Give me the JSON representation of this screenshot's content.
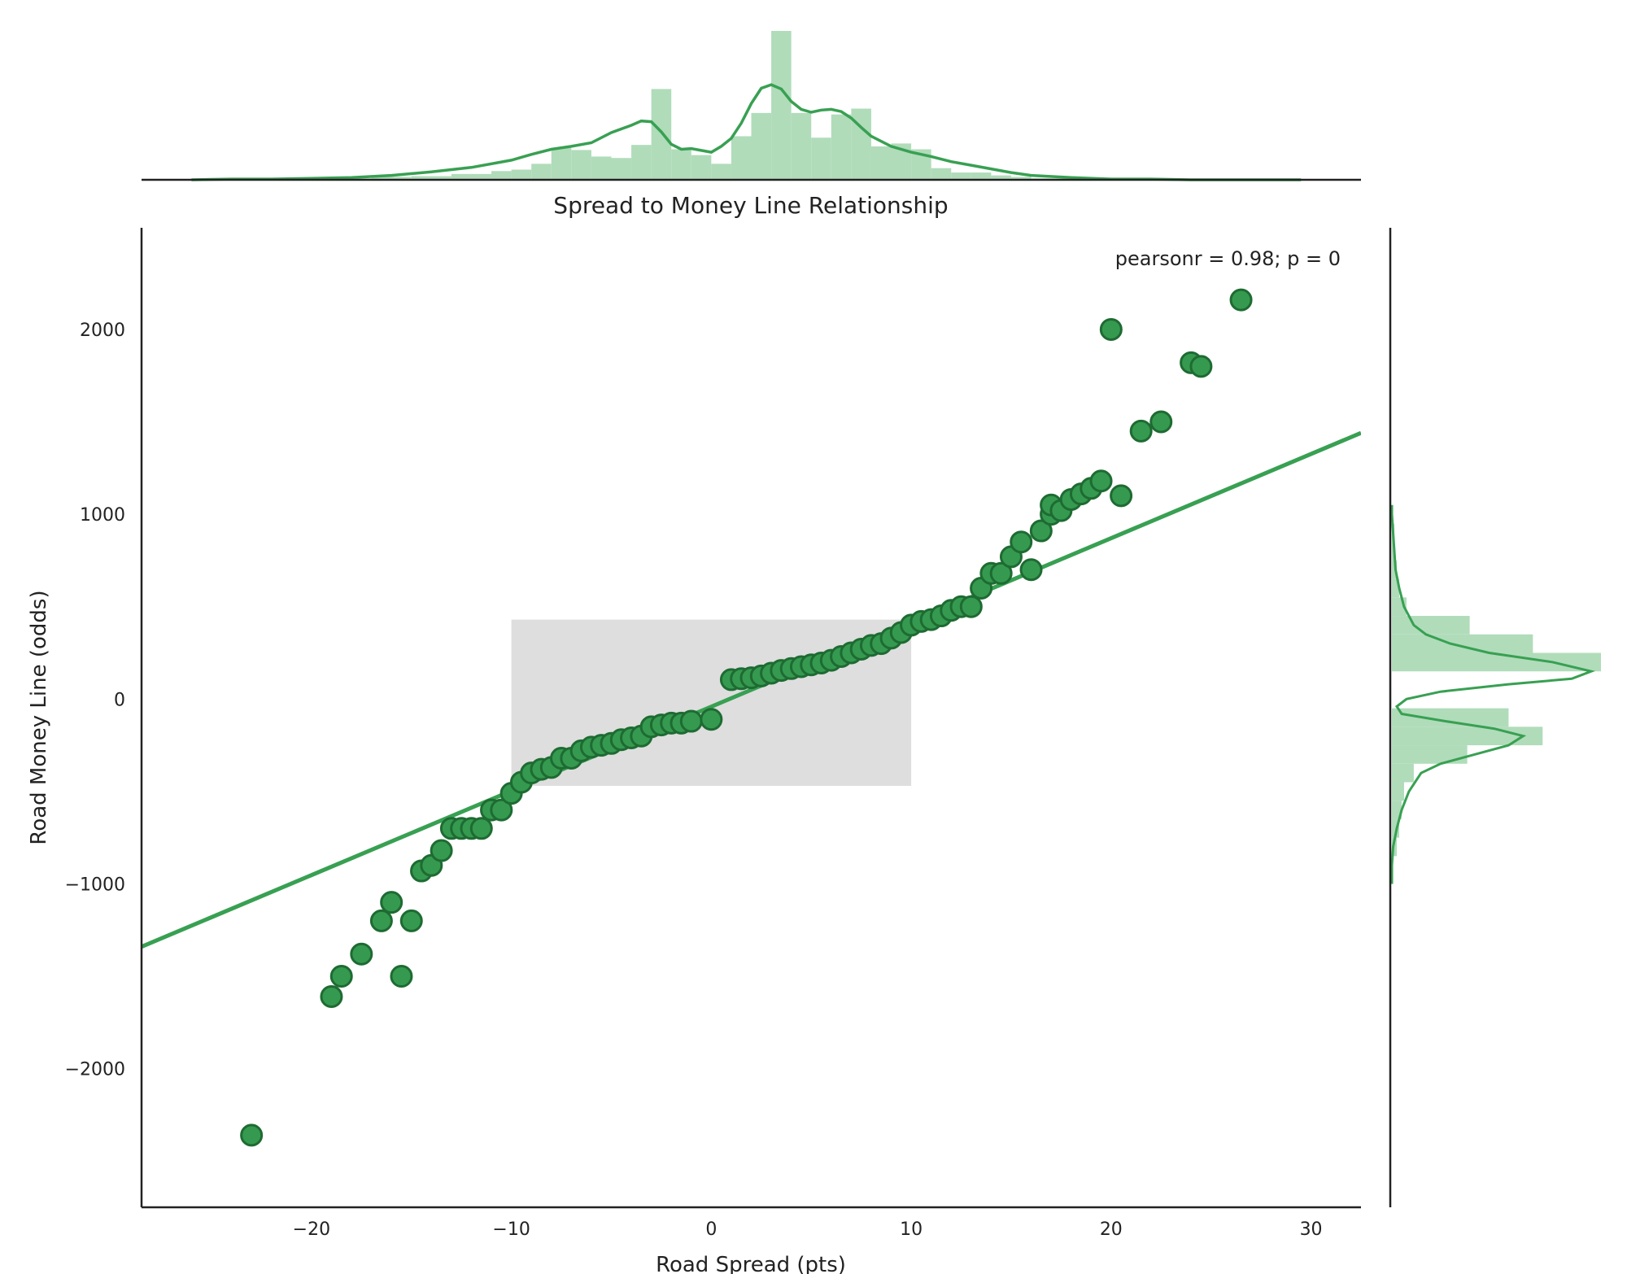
{
  "chart_data": {
    "type": "scatter",
    "title": "Spread to Money Line Relationship",
    "xlabel": "Road Spread (pts)",
    "ylabel": "Road Money Line (odds)",
    "annotation": "pearsonr = 0.98; p = 0",
    "xlim": [
      -28.5,
      32.5
    ],
    "ylim": [
      -2750,
      2550
    ],
    "x_ticks": [
      -20,
      -10,
      0,
      10,
      20,
      30
    ],
    "x_tick_labels": [
      "−20",
      "−10",
      "0",
      "10",
      "20",
      "30"
    ],
    "y_ticks": [
      -2000,
      -1000,
      0,
      1000,
      2000
    ],
    "y_tick_labels": [
      "−2000",
      "−1000",
      "0",
      "1000",
      "2000"
    ],
    "grid": false,
    "colors": {
      "point_fill": "#359a50",
      "point_edge": "#1e6b32",
      "line": "#38a052",
      "hist_fill": "#b0dcba",
      "shaded_region": "#dedede",
      "axes": "#222222"
    },
    "shaded_region": {
      "x": [
        -10,
        10
      ],
      "y": [
        -470,
        430
      ]
    },
    "regression_line": {
      "x": [
        -28.5,
        32.5
      ],
      "y": [
        -1340,
        1440
      ]
    },
    "points": {
      "x": [
        -23,
        -19,
        -18.5,
        -17.5,
        -16.5,
        -16,
        -15.5,
        -15,
        -14.5,
        -14,
        -13.5,
        -13,
        -12.5,
        -12,
        -11.5,
        -11,
        -10.5,
        -10,
        -9.5,
        -9,
        -8.5,
        -8,
        -7.5,
        -7,
        -6.5,
        -6,
        -5.5,
        -5,
        -4.5,
        -4,
        -3.5,
        -3,
        -2.5,
        -2,
        -1.5,
        -1,
        0,
        1,
        1.5,
        2,
        2.5,
        3,
        3.5,
        4,
        4.5,
        5,
        5.5,
        6,
        6.5,
        7,
        7.5,
        8,
        8.5,
        9,
        9.5,
        10,
        10.5,
        11,
        11.5,
        12,
        12.5,
        13,
        13.5,
        14,
        14.5,
        15,
        15.5,
        16,
        16.5,
        17,
        17,
        17.5,
        18,
        18.5,
        19,
        19.5,
        20,
        20.5,
        21.5,
        22.5,
        24,
        24.5,
        26.5
      ],
      "y": [
        -2360,
        -1610,
        -1500,
        -1380,
        -1200,
        -1100,
        -1500,
        -1200,
        -930,
        -900,
        -820,
        -700,
        -700,
        -700,
        -700,
        -600,
        -600,
        -510,
        -450,
        -400,
        -380,
        -370,
        -320,
        -320,
        -280,
        -260,
        -250,
        -240,
        -220,
        -210,
        -200,
        -150,
        -140,
        -130,
        -130,
        -120,
        -110,
        105,
        110,
        115,
        125,
        140,
        155,
        165,
        175,
        185,
        195,
        210,
        230,
        250,
        270,
        290,
        300,
        330,
        360,
        400,
        420,
        430,
        450,
        480,
        500,
        500,
        600,
        680,
        680,
        770,
        850,
        700,
        910,
        1000,
        1050,
        1020,
        1080,
        1110,
        1140,
        1180,
        2000,
        1100,
        1450,
        1500,
        1820,
        1800,
        2160
      ]
    },
    "x_distribution": {
      "bins": [
        -29,
        -27,
        -25,
        -23,
        -21,
        -19,
        -17,
        -15,
        -13,
        -11,
        -10,
        -9,
        -8,
        -7,
        -6,
        -5,
        -4,
        -3,
        -2,
        -1,
        0,
        1,
        2,
        3,
        4,
        5,
        6,
        7,
        8,
        9,
        10,
        11,
        12,
        13,
        14,
        15,
        16,
        17,
        18,
        19,
        20,
        21,
        22,
        23,
        24,
        25,
        26,
        27,
        28,
        29,
        30
      ],
      "density": [
        0.0,
        0.0,
        0.0,
        0.001,
        0.001,
        0.002,
        0.004,
        0.005,
        0.008,
        0.012,
        0.014,
        0.022,
        0.044,
        0.041,
        0.032,
        0.03,
        0.048,
        0.125,
        0.042,
        0.034,
        0.022,
        0.06,
        0.092,
        0.205,
        0.092,
        0.058,
        0.09,
        0.098,
        0.046,
        0.05,
        0.042,
        0.016,
        0.01,
        0.01,
        0.006,
        0.004,
        0.002,
        0.002,
        0.001,
        0.001,
        0.0,
        0.0,
        0.0,
        0.0,
        0.0,
        0.0,
        0.0,
        0.0,
        0.0,
        0.0
      ],
      "kde": {
        "x": [
          -26,
          -24,
          -22,
          -20,
          -18,
          -16,
          -14,
          -12,
          -10,
          -9,
          -8,
          -7,
          -6,
          -5,
          -4,
          -3.5,
          -3,
          -2.5,
          -2,
          -1.5,
          -1,
          0,
          0.5,
          1,
          1.5,
          2,
          2.5,
          3,
          3.5,
          4,
          4.5,
          5,
          5.5,
          6,
          6.5,
          7,
          7.5,
          8,
          9,
          10,
          11,
          12,
          13,
          14,
          15,
          16,
          18,
          20,
          22,
          24,
          26,
          29.5
        ],
        "y": [
          0.0,
          0.001,
          0.001,
          0.002,
          0.003,
          0.006,
          0.011,
          0.017,
          0.027,
          0.035,
          0.042,
          0.046,
          0.051,
          0.065,
          0.075,
          0.081,
          0.08,
          0.066,
          0.049,
          0.042,
          0.043,
          0.038,
          0.046,
          0.057,
          0.078,
          0.105,
          0.126,
          0.131,
          0.125,
          0.108,
          0.097,
          0.093,
          0.096,
          0.097,
          0.094,
          0.085,
          0.072,
          0.06,
          0.046,
          0.038,
          0.032,
          0.025,
          0.02,
          0.015,
          0.01,
          0.006,
          0.003,
          0.001,
          0.001,
          0.0,
          0.0,
          0.0
        ]
      }
    },
    "y_distribution": {
      "bins": [
        -2750,
        -2650,
        -2550,
        -2450,
        -2350,
        -2250,
        -2150,
        -2050,
        -1950,
        -1850,
        -1750,
        -1650,
        -1550,
        -1450,
        -1350,
        -1250,
        -1150,
        -1050,
        -950,
        -850,
        -750,
        -650,
        -550,
        -450,
        -350,
        -250,
        -150,
        -50,
        50,
        150,
        250,
        350,
        450,
        550,
        650,
        750,
        850,
        950,
        1050,
        1150,
        1250,
        1350,
        1450,
        1550,
        1650,
        1750,
        1850,
        1950,
        2050,
        2150,
        2250,
        2350,
        2450,
        2550
      ],
      "density": [
        0,
        0,
        0,
        0,
        0,
        0,
        0,
        0,
        0,
        0,
        0,
        0,
        0,
        0,
        0,
        0,
        0,
        0,
        0,
        0.02,
        0.03,
        0.04,
        0.05,
        0.09,
        0.31,
        0.62,
        0.48,
        0,
        0,
        0.86,
        0.58,
        0.32,
        0.06,
        0.03,
        0.02,
        0.01,
        0.01,
        0,
        0,
        0,
        0,
        0,
        0,
        0,
        0,
        0,
        0,
        0,
        0,
        0,
        0,
        0,
        0
      ],
      "kde": {
        "y": [
          -1000,
          -900,
          -800,
          -700,
          -600,
          -500,
          -400,
          -350,
          -300,
          -250,
          -200,
          -160,
          -120,
          -80,
          -40,
          0,
          40,
          80,
          110,
          150,
          200,
          250,
          300,
          350,
          400,
          500,
          600,
          700,
          800,
          900,
          1000,
          1050
        ],
        "x": [
          0.0,
          0.0,
          0.005,
          0.02,
          0.04,
          0.07,
          0.12,
          0.2,
          0.34,
          0.48,
          0.54,
          0.42,
          0.22,
          0.04,
          0.02,
          0.06,
          0.2,
          0.48,
          0.74,
          0.82,
          0.66,
          0.4,
          0.24,
          0.14,
          0.09,
          0.05,
          0.03,
          0.015,
          0.01,
          0.005,
          0.0,
          0.0
        ]
      }
    }
  }
}
